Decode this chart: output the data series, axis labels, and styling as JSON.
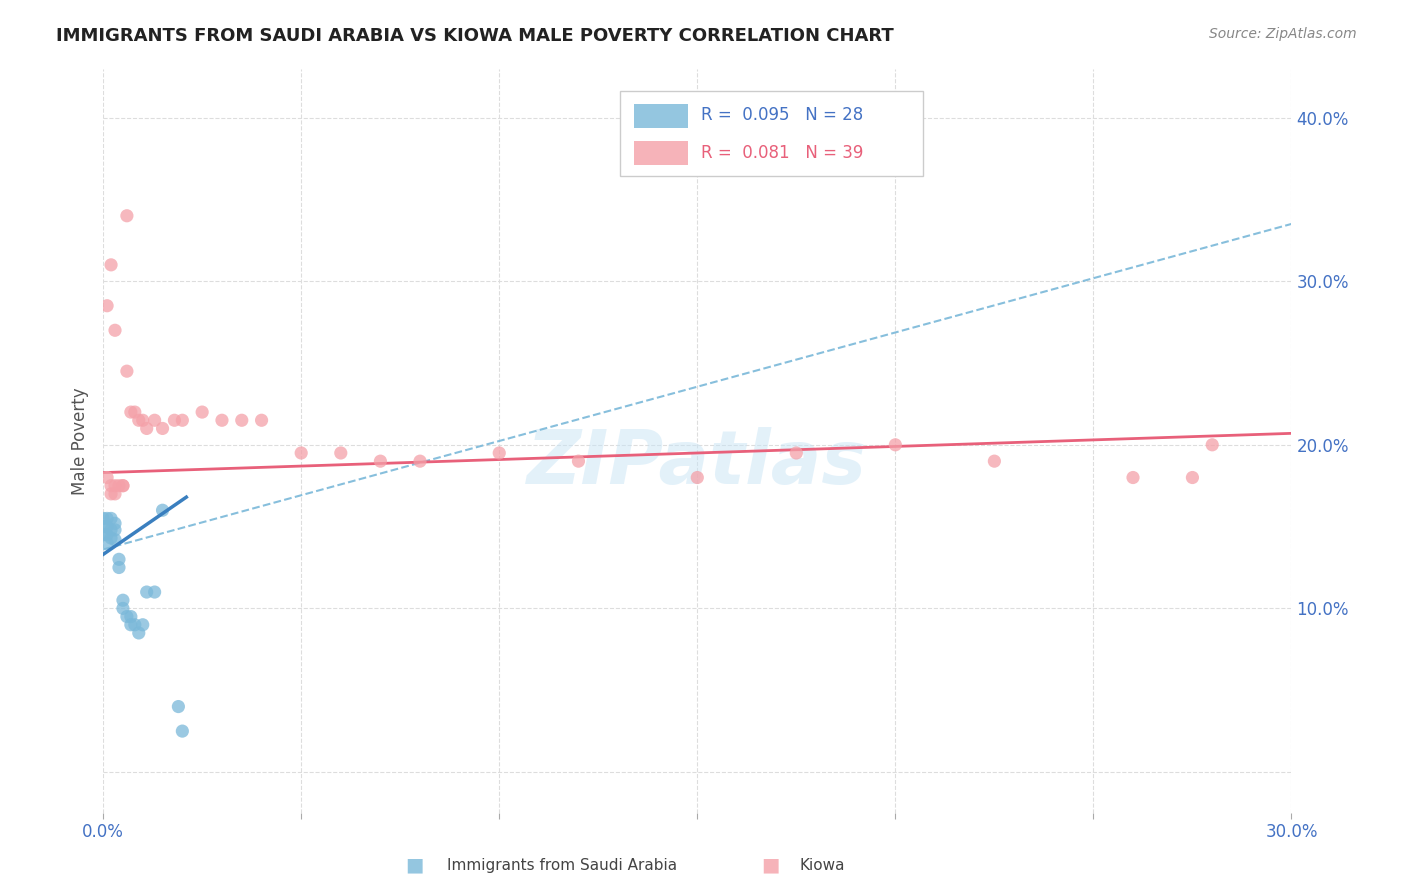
{
  "title": "IMMIGRANTS FROM SAUDI ARABIA VS KIOWA MALE POVERTY CORRELATION CHART",
  "source": "Source: ZipAtlas.com",
  "ylabel": "Male Poverty",
  "right_yticks": [
    0.0,
    0.1,
    0.2,
    0.3,
    0.4
  ],
  "right_yticklabels": [
    "",
    "10.0%",
    "20.0%",
    "30.0%",
    "40.0%"
  ],
  "xlim": [
    0.0,
    0.3
  ],
  "ylim": [
    -0.025,
    0.43
  ],
  "blue_color": "#7ab8d9",
  "pink_color": "#f4a0a8",
  "trendline_blue_dashed_color": "#7ab8d9",
  "trendline_blue_solid_color": "#3a7fbf",
  "trendline_pink_color": "#e8607a",
  "legend_R_blue": "0.095",
  "legend_N_blue": "28",
  "legend_R_pink": "0.081",
  "legend_N_pink": "39",
  "watermark": "ZIPatlas",
  "saudi_x": [
    0.0,
    0.0,
    0.0,
    0.001,
    0.001,
    0.001,
    0.001,
    0.002,
    0.002,
    0.002,
    0.003,
    0.003,
    0.003,
    0.004,
    0.004,
    0.005,
    0.005,
    0.006,
    0.007,
    0.007,
    0.008,
    0.009,
    0.01,
    0.011,
    0.013,
    0.015,
    0.019,
    0.02
  ],
  "saudi_y": [
    0.155,
    0.15,
    0.145,
    0.155,
    0.15,
    0.145,
    0.14,
    0.155,
    0.148,
    0.143,
    0.152,
    0.148,
    0.142,
    0.13,
    0.125,
    0.105,
    0.1,
    0.095,
    0.095,
    0.09,
    0.09,
    0.085,
    0.09,
    0.11,
    0.11,
    0.16,
    0.04,
    0.025
  ],
  "kiowa_x": [
    0.001,
    0.002,
    0.002,
    0.003,
    0.003,
    0.004,
    0.005,
    0.005,
    0.006,
    0.007,
    0.008,
    0.009,
    0.01,
    0.011,
    0.013,
    0.015,
    0.018,
    0.02,
    0.025,
    0.03,
    0.035,
    0.04,
    0.05,
    0.06,
    0.07,
    0.08,
    0.1,
    0.12,
    0.15,
    0.175,
    0.2,
    0.225,
    0.26,
    0.275,
    0.28,
    0.001,
    0.002,
    0.003,
    0.006
  ],
  "kiowa_y": [
    0.18,
    0.175,
    0.17,
    0.175,
    0.17,
    0.175,
    0.175,
    0.175,
    0.245,
    0.22,
    0.22,
    0.215,
    0.215,
    0.21,
    0.215,
    0.21,
    0.215,
    0.215,
    0.22,
    0.215,
    0.215,
    0.215,
    0.195,
    0.195,
    0.19,
    0.19,
    0.195,
    0.19,
    0.18,
    0.195,
    0.2,
    0.19,
    0.18,
    0.18,
    0.2,
    0.285,
    0.31,
    0.27,
    0.34
  ],
  "trendline_blue_x0": 0.0,
  "trendline_blue_y0": 0.136,
  "trendline_blue_x1": 0.3,
  "trendline_blue_y1": 0.335,
  "trendline_blue_solid_x0": 0.0,
  "trendline_blue_solid_y0": 0.133,
  "trendline_blue_solid_x1": 0.021,
  "trendline_blue_solid_y1": 0.168,
  "trendline_pink_x0": 0.0,
  "trendline_pink_y0": 0.183,
  "trendline_pink_x1": 0.3,
  "trendline_pink_y1": 0.207
}
